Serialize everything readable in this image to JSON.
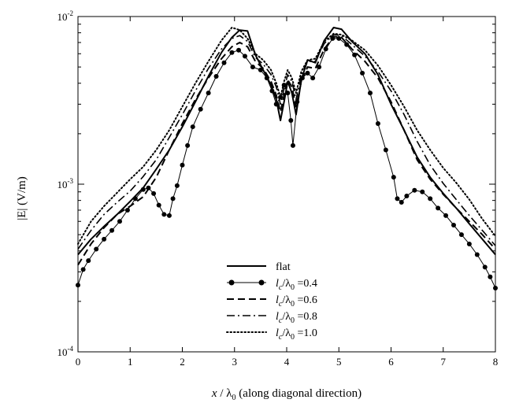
{
  "chart_data": {
    "type": "line",
    "title": "",
    "xlabel": {
      "var": "x",
      "slash": " / ",
      "lambda": "λ",
      "sub": "0",
      "rest": " (along diagonal direction)"
    },
    "ylabel": "|E| (V/m)",
    "xlim": [
      0,
      8
    ],
    "ylim": [
      0.0001,
      0.01
    ],
    "yscale": "log",
    "grid": false,
    "legend_position": "lower-center",
    "x_ticks": [
      "0",
      "1",
      "2",
      "3",
      "4",
      "5",
      "6",
      "7",
      "8"
    ],
    "y_ticks": [
      {
        "base": "10",
        "exp": "-4"
      },
      {
        "base": "10",
        "exp": "-3"
      },
      {
        "base": "10",
        "exp": "-2"
      }
    ],
    "series": [
      {
        "name": "flat",
        "legend": {
          "plain": "flat"
        },
        "style": "solid",
        "x": [
          0,
          0.25,
          0.5,
          0.75,
          1.0,
          1.25,
          1.5,
          1.75,
          2.0,
          2.25,
          2.5,
          2.75,
          2.95,
          3.1,
          3.25,
          3.4,
          3.55,
          3.7,
          3.8,
          3.88,
          3.95,
          4.02,
          4.1,
          4.18,
          4.28,
          4.4,
          4.55,
          4.72,
          4.9,
          5.05,
          5.25,
          5.5,
          5.75,
          6.0,
          6.25,
          6.5,
          6.75,
          7.0,
          7.25,
          7.5,
          7.75,
          8.0
        ],
        "y": [
          0.00038,
          0.00047,
          0.00056,
          0.00066,
          0.00079,
          0.00095,
          0.00123,
          0.0016,
          0.0022,
          0.0031,
          0.0044,
          0.0061,
          0.0075,
          0.0083,
          0.0082,
          0.0059,
          0.0048,
          0.0039,
          0.0032,
          0.0024,
          0.0031,
          0.0041,
          0.0035,
          0.0026,
          0.0042,
          0.0055,
          0.0053,
          0.0072,
          0.0086,
          0.0084,
          0.0071,
          0.006,
          0.0045,
          0.003,
          0.0021,
          0.00145,
          0.0011,
          0.00088,
          0.00072,
          0.00058,
          0.00047,
          0.00038
        ]
      },
      {
        "name": "lc/λ0 = 0.4",
        "legend": {
          "l": "l",
          "c": "c",
          "lam": "λ",
          "zero": "0",
          "value": "=0.4"
        },
        "style": "solid-dots",
        "x": [
          0,
          0.1,
          0.2,
          0.35,
          0.5,
          0.65,
          0.8,
          0.95,
          1.1,
          1.25,
          1.35,
          1.45,
          1.55,
          1.65,
          1.75,
          1.82,
          1.9,
          2.0,
          2.1,
          2.2,
          2.35,
          2.5,
          2.65,
          2.8,
          2.95,
          3.08,
          3.2,
          3.35,
          3.5,
          3.62,
          3.72,
          3.8,
          3.88,
          3.95,
          4.02,
          4.08,
          4.12,
          4.2,
          4.3,
          4.4,
          4.5,
          4.62,
          4.75,
          4.88,
          5.0,
          5.15,
          5.3,
          5.45,
          5.6,
          5.75,
          5.9,
          6.05,
          6.12,
          6.2,
          6.3,
          6.45,
          6.6,
          6.75,
          6.9,
          7.05,
          7.2,
          7.35,
          7.5,
          7.65,
          7.8,
          7.9,
          8.0
        ],
        "y": [
          0.00025,
          0.00031,
          0.00035,
          0.00041,
          0.00047,
          0.00053,
          0.0006,
          0.0007,
          0.00082,
          0.00093,
          0.00095,
          0.00088,
          0.00075,
          0.00066,
          0.00065,
          0.00082,
          0.00098,
          0.0013,
          0.0017,
          0.0022,
          0.0028,
          0.0035,
          0.0044,
          0.0053,
          0.0061,
          0.0063,
          0.0058,
          0.005,
          0.0048,
          0.0043,
          0.0036,
          0.003,
          0.0033,
          0.0039,
          0.0035,
          0.0024,
          0.0017,
          0.0031,
          0.0043,
          0.0046,
          0.0043,
          0.005,
          0.0064,
          0.0074,
          0.0074,
          0.0068,
          0.0059,
          0.0046,
          0.0035,
          0.0023,
          0.0016,
          0.0011,
          0.00082,
          0.00078,
          0.00085,
          0.00092,
          0.0009,
          0.00082,
          0.00072,
          0.00065,
          0.00057,
          0.0005,
          0.00044,
          0.00038,
          0.00032,
          0.00028,
          0.00024
        ]
      },
      {
        "name": "lc/λ0 = 0.6",
        "legend": {
          "l": "l",
          "c": "c",
          "lam": "λ",
          "zero": "0",
          "value": "=0.6"
        },
        "style": "dashed",
        "x": [
          0,
          0.25,
          0.5,
          0.75,
          1.0,
          1.25,
          1.5,
          1.75,
          2.0,
          2.25,
          2.5,
          2.75,
          2.95,
          3.1,
          3.25,
          3.4,
          3.55,
          3.7,
          3.8,
          3.88,
          3.95,
          4.02,
          4.1,
          4.18,
          4.28,
          4.4,
          4.55,
          4.72,
          4.9,
          5.05,
          5.25,
          5.5,
          5.75,
          6.0,
          6.25,
          6.5,
          6.75,
          7.0,
          7.25,
          7.5,
          7.75,
          8.0
        ],
        "y": [
          0.00033,
          0.00044,
          0.00055,
          0.00066,
          0.00074,
          0.00084,
          0.0011,
          0.0016,
          0.0023,
          0.0032,
          0.0043,
          0.0056,
          0.0066,
          0.007,
          0.0066,
          0.0054,
          0.0049,
          0.0041,
          0.0034,
          0.0027,
          0.0034,
          0.0042,
          0.0038,
          0.0029,
          0.0041,
          0.005,
          0.0049,
          0.0064,
          0.0076,
          0.0075,
          0.0064,
          0.0054,
          0.0043,
          0.0031,
          0.0021,
          0.0014,
          0.00107,
          0.00087,
          0.00072,
          0.0006,
          0.0005,
          0.00041
        ]
      },
      {
        "name": "lc/λ0 = 0.8",
        "legend": {
          "l": "l",
          "c": "c",
          "lam": "λ",
          "zero": "0",
          "value": "=0.8"
        },
        "style": "dash-dot",
        "x": [
          0,
          0.25,
          0.5,
          0.75,
          1.0,
          1.25,
          1.5,
          1.75,
          2.0,
          2.25,
          2.5,
          2.75,
          2.95,
          3.1,
          3.25,
          3.4,
          3.55,
          3.7,
          3.8,
          3.88,
          3.95,
          4.02,
          4.1,
          4.18,
          4.28,
          4.4,
          4.55,
          4.72,
          4.9,
          5.05,
          5.25,
          5.5,
          5.75,
          6.0,
          6.25,
          6.5,
          6.75,
          7.0,
          7.25,
          7.5,
          7.75,
          8.0
        ],
        "y": [
          0.00041,
          0.00053,
          0.00066,
          0.00078,
          0.00091,
          0.00111,
          0.0014,
          0.0019,
          0.0026,
          0.0036,
          0.0049,
          0.0064,
          0.0074,
          0.0077,
          0.0071,
          0.0057,
          0.0052,
          0.0045,
          0.0038,
          0.003,
          0.0037,
          0.0045,
          0.0041,
          0.0032,
          0.0045,
          0.0054,
          0.0054,
          0.0069,
          0.0078,
          0.0077,
          0.0068,
          0.0058,
          0.0047,
          0.0036,
          0.0026,
          0.0018,
          0.0013,
          0.00101,
          0.00081,
          0.00065,
          0.00053,
          0.00043
        ]
      },
      {
        "name": "lc/λ0 = 1.0",
        "legend": {
          "l": "l",
          "c": "c",
          "lam": "λ",
          "zero": "0",
          "value": "=1.0"
        },
        "style": "dotted",
        "x": [
          0,
          0.25,
          0.5,
          0.75,
          1.0,
          1.25,
          1.5,
          1.75,
          2.0,
          2.25,
          2.5,
          2.75,
          2.95,
          3.1,
          3.25,
          3.4,
          3.55,
          3.7,
          3.8,
          3.88,
          3.95,
          4.02,
          4.1,
          4.18,
          4.28,
          4.4,
          4.55,
          4.72,
          4.9,
          5.05,
          5.25,
          5.5,
          5.75,
          6.0,
          6.25,
          6.5,
          6.75,
          7.0,
          7.25,
          7.5,
          7.75,
          8.0
        ],
        "y": [
          0.00044,
          0.0006,
          0.00074,
          0.00089,
          0.00107,
          0.00127,
          0.0016,
          0.0021,
          0.0029,
          0.004,
          0.0054,
          0.0072,
          0.0086,
          0.0083,
          0.0074,
          0.006,
          0.0055,
          0.0048,
          0.004,
          0.0033,
          0.0041,
          0.0048,
          0.0043,
          0.0035,
          0.0047,
          0.0055,
          0.0056,
          0.0071,
          0.0079,
          0.0078,
          0.0072,
          0.0063,
          0.0051,
          0.0039,
          0.0029,
          0.0021,
          0.0016,
          0.00125,
          0.00102,
          0.00081,
          0.00062,
          0.00049
        ]
      }
    ]
  }
}
